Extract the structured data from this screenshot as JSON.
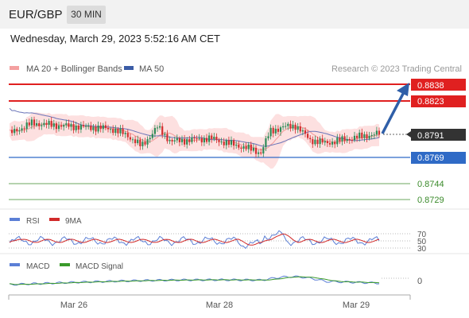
{
  "header": {
    "pair": "EUR/GBP",
    "timeframe": "30 MIN"
  },
  "datetime": "Wednesday, March 29, 2023 5:52:16 AM CET",
  "legend": {
    "ma20": "MA 20 + Bollinger Bands",
    "ma50": "MA 50",
    "credit": "Research © 2023 Trading Central"
  },
  "levels": [
    {
      "value": "0.8838",
      "kind": "resistance"
    },
    {
      "value": "0.8823",
      "kind": "resistance"
    },
    {
      "value": "0.8791",
      "kind": "last"
    },
    {
      "value": "0.8769",
      "kind": "support"
    },
    {
      "value": "0.8744",
      "kind": "support-2"
    },
    {
      "value": "0.8729",
      "kind": "support-3"
    }
  ],
  "rsi": {
    "label": "RSI",
    "ma_label": "9MA",
    "ticks": [
      "70",
      "50",
      "30"
    ]
  },
  "macd": {
    "label": "MACD",
    "signal_label": "MACD Signal",
    "tick": "0"
  },
  "xaxis": {
    "labels": [
      "Mar 26",
      "Mar 28",
      "Mar 29"
    ]
  },
  "colors": {
    "resistance": "#e02020",
    "support": "#2f6ac6",
    "green": "#3a8a2a",
    "candle_up": "#2e8b57",
    "candle_down": "#d32f2f",
    "bands": "#fcd9d9",
    "ma20": "#f08a8a",
    "ma50": "#4b57a8",
    "rsi": "#5b7fd6",
    "rsi_ma": "#d12a2a",
    "macd": "#5b7fd6",
    "macd_signal": "#3a9a2a",
    "arrow": "#2f5fa8"
  },
  "chart_data": {
    "type": "line",
    "title": "EUR/GBP",
    "x": [
      "Mar 26",
      "Mar 28",
      "Mar 29"
    ],
    "series": [
      {
        "name": "MA 20 + Bollinger Bands"
      },
      {
        "name": "MA 50"
      }
    ],
    "ylim": [
      0.8729,
      0.8838
    ],
    "horizontal_levels": [
      0.8838,
      0.8823,
      0.8791,
      0.8769,
      0.8744,
      0.8729
    ],
    "last_price": 0.8791,
    "forecast": "up toward 0.8838",
    "subcharts": [
      "RSI",
      "MACD"
    ]
  }
}
